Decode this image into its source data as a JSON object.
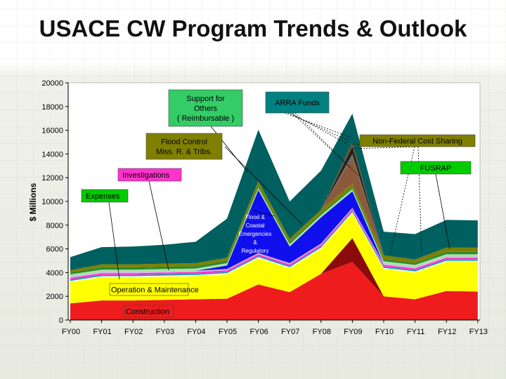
{
  "title": "USACE CW Program Trends & Outlook",
  "chart_data": {
    "type": "area",
    "stacked": true,
    "categories": [
      "FY00",
      "FY01",
      "FY02",
      "FY03",
      "FY04",
      "FY05",
      "FY06",
      "FY07",
      "FY08",
      "FY09",
      "FY10",
      "FY11",
      "FY12",
      "FY13"
    ],
    "ylabel": "$ Millions",
    "xlabel": "",
    "ylim": [
      0,
      20000
    ],
    "yticks": [
      0,
      2000,
      4000,
      6000,
      8000,
      10000,
      12000,
      14000,
      16000,
      18000,
      20000
    ],
    "grid": false,
    "series": [
      {
        "name": "Construction",
        "color": "#ee1c1c",
        "values": [
          1400,
          1650,
          1650,
          1700,
          1750,
          1800,
          3000,
          2350,
          3900,
          4900,
          2000,
          1750,
          2450,
          2400
        ]
      },
      {
        "name": "",
        "color": "#8b0a0a",
        "values": [
          0,
          0,
          0,
          0,
          0,
          0,
          0,
          0,
          0,
          2000,
          0,
          0,
          0,
          0
        ]
      },
      {
        "name": "Operation & Maintenance",
        "color": "#ffff00",
        "values": [
          1800,
          1950,
          1950,
          1950,
          1950,
          2050,
          2200,
          2000,
          2100,
          2100,
          2300,
          2250,
          2450,
          2500
        ]
      },
      {
        "name": "",
        "color": "#ffffe0",
        "values": [
          100,
          100,
          100,
          100,
          100,
          100,
          100,
          100,
          100,
          100,
          100,
          100,
          100,
          100
        ]
      },
      {
        "name": "Expenses",
        "color": "#00a8a8",
        "values": [
          100,
          100,
          100,
          100,
          100,
          100,
          100,
          100,
          100,
          100,
          100,
          100,
          100,
          100
        ]
      },
      {
        "name": "Investigations",
        "color": "#ff33cc",
        "values": [
          150,
          150,
          150,
          150,
          150,
          150,
          150,
          150,
          150,
          150,
          150,
          150,
          150,
          150
        ]
      },
      {
        "name": "",
        "color": "#d8b0f0",
        "values": [
          100,
          100,
          100,
          100,
          100,
          100,
          100,
          100,
          100,
          100,
          100,
          100,
          100,
          100
        ]
      },
      {
        "name": "Flood & Coastal Emergencies & Regulatory",
        "color": "#1010ee",
        "values": [
          0,
          0,
          0,
          0,
          0,
          300,
          5300,
          1400,
          2200,
          1400,
          0,
          0,
          0,
          0
        ]
      },
      {
        "name": "",
        "color": "#a8e0a8",
        "values": [
          200,
          200,
          200,
          200,
          200,
          200,
          200,
          200,
          200,
          200,
          200,
          200,
          200,
          200
        ]
      },
      {
        "name": "Flood Control Miss. R. & Tribs.",
        "color": "#2a8a2a",
        "values": [
          150,
          200,
          200,
          200,
          200,
          200,
          150,
          150,
          150,
          150,
          200,
          150,
          200,
          200
        ]
      },
      {
        "name": "",
        "color": "#808000",
        "values": [
          200,
          250,
          250,
          250,
          250,
          250,
          400,
          300,
          300,
          300,
          300,
          300,
          350,
          350
        ]
      },
      {
        "name": "Non-Federal Cost Sharing",
        "color": "#8b5a3c",
        "values": [
          0,
          0,
          0,
          0,
          0,
          0,
          0,
          0,
          0,
          2200,
          0,
          0,
          0,
          0
        ]
      },
      {
        "name": "FUSRAP",
        "color": "#6a6a6a",
        "values": [
          0,
          0,
          0,
          0,
          0,
          0,
          0,
          0,
          0,
          300,
          0,
          0,
          0,
          0
        ]
      },
      {
        "name": "",
        "color": "#202020",
        "values": [
          0,
          0,
          0,
          0,
          0,
          0,
          0,
          0,
          0,
          600,
          0,
          0,
          0,
          0
        ]
      },
      {
        "name": "",
        "color": "#705020",
        "values": [
          0,
          0,
          0,
          0,
          0,
          0,
          0,
          0,
          0,
          400,
          0,
          0,
          0,
          0
        ]
      },
      {
        "name": "ARRA Funds",
        "color": "#006060",
        "values": [
          1100,
          1450,
          1500,
          1600,
          1800,
          3300,
          4350,
          3150,
          3300,
          2400,
          2000,
          2150,
          2350,
          2300
        ]
      }
    ],
    "annotations": [
      {
        "text_lines": [
          "Support for",
          "Others",
          "( Reimbursable )"
        ],
        "bg": "#33cc66"
      },
      {
        "text_lines": [
          "ARRA Funds"
        ],
        "bg": "#008080"
      },
      {
        "text_lines": [
          "Non-Federal Cost Sharing"
        ],
        "bg": "#808000"
      },
      {
        "text_lines": [
          "Flood Control",
          "Miss. R. & Tribs."
        ],
        "bg": "#808000"
      },
      {
        "text_lines": [
          "FUSRAP"
        ],
        "bg": "#00cc00"
      },
      {
        "text_lines": [
          "Investigations"
        ],
        "bg": "#ff33cc"
      },
      {
        "text_lines": [
          "Expenses"
        ],
        "bg": "#00cc00"
      },
      {
        "text_lines": [
          "Flood &",
          "Coastal",
          "Emergencies",
          "&",
          "Regulatory"
        ],
        "bg": "none"
      },
      {
        "text_lines": [
          "Operation & Maintenance"
        ],
        "bg": "#ffff00"
      },
      {
        "text_lines": [
          "Construction"
        ],
        "bg": "#ee1c1c"
      }
    ]
  }
}
